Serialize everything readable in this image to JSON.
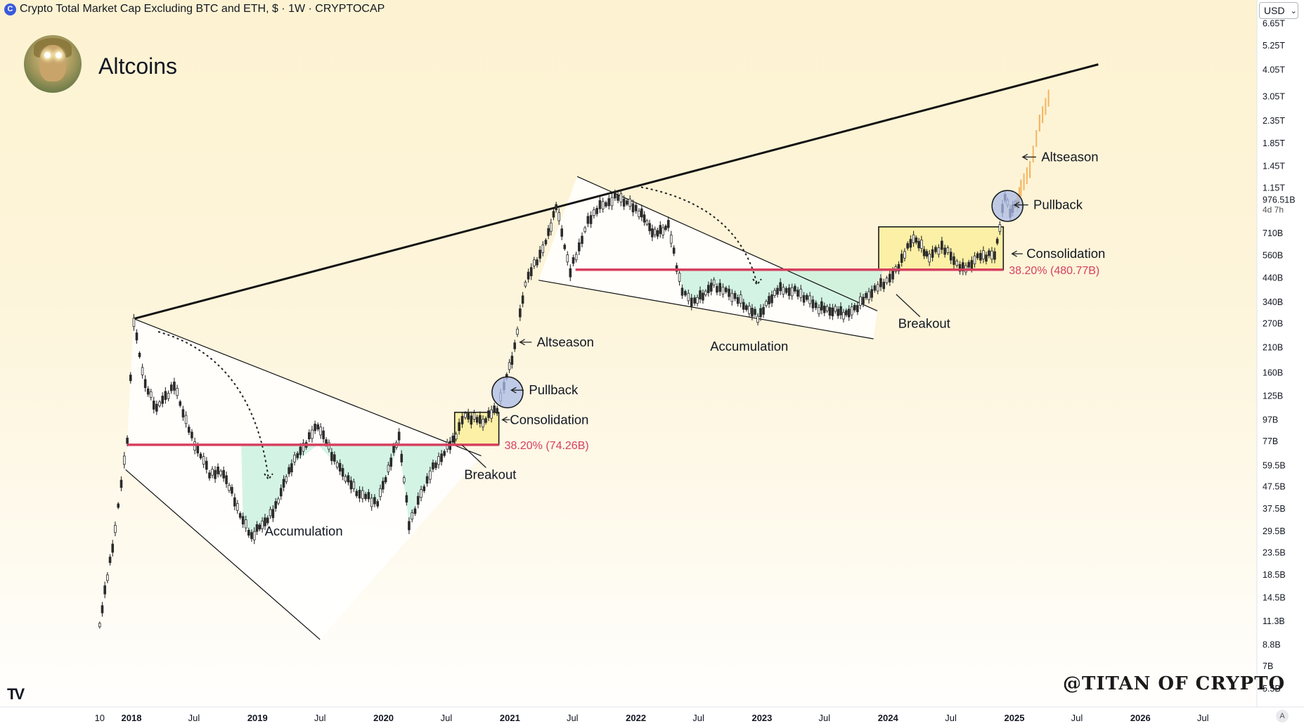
{
  "header": {
    "logo_icon": "cryptocap-logo-icon",
    "title": "Crypto Total Market Cap Excluding BTC and ETH, $ · 1W · CRYPTOCAP"
  },
  "page_title": "Altcoins",
  "currency_select": {
    "value": "USD"
  },
  "watermark": "@TITAN OF CRYPTO",
  "auto_scale_label": "A",
  "colors": {
    "support": "#d6405f",
    "accumulation": "#c8f1de",
    "consolidation": "#fbf0a6",
    "pullback_circle": "#a9bbe8",
    "projection": "#f5b562"
  },
  "chart_data": {
    "type": "line",
    "y_scale": "log",
    "x_ticks": [
      "10",
      "2018",
      "Jul",
      "2019",
      "Jul",
      "2020",
      "Jul",
      "2021",
      "Jul",
      "2022",
      "Jul",
      "2023",
      "Jul",
      "2024",
      "Jul",
      "2025",
      "Jul",
      "2026",
      "Jul"
    ],
    "y_ticks": [
      "6.65T",
      "5.25T",
      "4.05T",
      "3.05T",
      "2.35T",
      "1.85T",
      "1.45T",
      "1.15T",
      "710B",
      "560B",
      "440B",
      "340B",
      "270B",
      "210B",
      "160B",
      "125B",
      "97B",
      "77B",
      "59.5B",
      "47.5B",
      "37.5B",
      "29.5B",
      "23.5B",
      "18.5B",
      "14.5B",
      "11.3B",
      "8.8B",
      "7B",
      "5.5B"
    ],
    "last_price": {
      "value": "976.51B",
      "countdown": "4d 7h"
    },
    "series": [
      {
        "values_billion_usd": [
          {
            "x": "2017-10-01",
            "y": 11
          },
          {
            "x": "2017-11-15",
            "y": 30
          },
          {
            "x": "2017-12-20",
            "y": 80
          },
          {
            "x": "2018-01-08",
            "y": 275
          },
          {
            "x": "2018-02-10",
            "y": 140
          },
          {
            "x": "2018-03-15",
            "y": 110
          },
          {
            "x": "2018-05-05",
            "y": 140
          },
          {
            "x": "2018-06-25",
            "y": 80
          },
          {
            "x": "2018-08-15",
            "y": 55
          },
          {
            "x": "2018-09-25",
            "y": 55
          },
          {
            "x": "2018-11-20",
            "y": 33
          },
          {
            "x": "2018-12-15",
            "y": 28
          },
          {
            "x": "2019-02-15",
            "y": 36
          },
          {
            "x": "2019-04-10",
            "y": 60
          },
          {
            "x": "2019-06-25",
            "y": 92
          },
          {
            "x": "2019-08-20",
            "y": 60
          },
          {
            "x": "2019-10-15",
            "y": 45
          },
          {
            "x": "2019-12-15",
            "y": 40
          },
          {
            "x": "2020-02-15",
            "y": 82
          },
          {
            "x": "2020-03-15",
            "y": 32
          },
          {
            "x": "2020-05-15",
            "y": 55
          },
          {
            "x": "2020-07-20",
            "y": 78
          },
          {
            "x": "2020-08-25",
            "y": 102
          },
          {
            "x": "2020-10-15",
            "y": 95
          },
          {
            "x": "2020-11-25",
            "y": 110
          },
          {
            "x": "2020-12-15",
            "y": 138
          },
          {
            "x": "2021-01-15",
            "y": 210
          },
          {
            "x": "2021-02-15",
            "y": 420
          },
          {
            "x": "2021-04-15",
            "y": 640
          },
          {
            "x": "2021-05-15",
            "y": 950
          },
          {
            "x": "2021-06-25",
            "y": 470
          },
          {
            "x": "2021-08-15",
            "y": 800
          },
          {
            "x": "2021-09-10",
            "y": 920
          },
          {
            "x": "2021-11-10",
            "y": 1050
          },
          {
            "x": "2022-01-10",
            "y": 900
          },
          {
            "x": "2022-02-25",
            "y": 700
          },
          {
            "x": "2022-04-05",
            "y": 770
          },
          {
            "x": "2022-05-15",
            "y": 380
          },
          {
            "x": "2022-06-20",
            "y": 340
          },
          {
            "x": "2022-08-15",
            "y": 410
          },
          {
            "x": "2022-10-15",
            "y": 360
          },
          {
            "x": "2022-12-20",
            "y": 290
          },
          {
            "x": "2023-02-15",
            "y": 390
          },
          {
            "x": "2023-04-15",
            "y": 380
          },
          {
            "x": "2023-06-15",
            "y": 320
          },
          {
            "x": "2023-09-10",
            "y": 300
          },
          {
            "x": "2023-11-15",
            "y": 380
          },
          {
            "x": "2024-01-15",
            "y": 450
          },
          {
            "x": "2024-03-15",
            "y": 680
          },
          {
            "x": "2024-04-30",
            "y": 550
          },
          {
            "x": "2024-06-05",
            "y": 620
          },
          {
            "x": "2024-08-05",
            "y": 480
          },
          {
            "x": "2024-09-25",
            "y": 560
          },
          {
            "x": "2024-11-05",
            "y": 560
          },
          {
            "x": "2024-12-05",
            "y": 1050
          },
          {
            "x": "2024-12-20",
            "y": 900
          },
          {
            "x": "2025-01-10",
            "y": 980
          }
        ]
      }
    ],
    "projection_billion_usd": [
      {
        "x": "2025-01-20",
        "y": 1150
      },
      {
        "x": "2025-02-15",
        "y": 1400
      },
      {
        "x": "2025-03-15",
        "y": 2300
      },
      {
        "x": "2025-04-10",
        "y": 3000
      }
    ],
    "trendlines": [
      {
        "name": "long-term-resistance",
        "from": {
          "x": "2018-01-08",
          "y": 285
        },
        "to": {
          "x": "2025-09-01",
          "y": 4300
        }
      },
      {
        "name": "channel-2018-upper",
        "from": {
          "x": "2018-01-08",
          "y": 285
        },
        "to": {
          "x": "2020-10-10",
          "y": 66
        }
      },
      {
        "name": "channel-2018-lower",
        "from": {
          "x": "2017-12-15",
          "y": 57
        },
        "to": {
          "x": "2019-07-01",
          "y": 9.3
        }
      },
      {
        "name": "channel-2022-upper",
        "from": {
          "x": "2021-07-15",
          "y": 1300
        },
        "to": {
          "x": "2023-12-01",
          "y": 310
        }
      },
      {
        "name": "channel-2022-lower",
        "from": {
          "x": "2021-03-25",
          "y": 430
        },
        "to": {
          "x": "2023-11-20",
          "y": 230
        }
      }
    ],
    "levels": [
      {
        "label": "38.20% (74.26B)",
        "value": 74.26,
        "from": "2017-12-20",
        "to": "2020-11-30"
      },
      {
        "label": "38.20% (480.77B)",
        "value": 480.77,
        "from": "2021-07-10",
        "to": "2024-11-30"
      }
    ],
    "boxes": [
      {
        "kind": "consolidation",
        "from": "2020-07-25",
        "to": "2020-11-30",
        "low": 74.26,
        "high": 105
      },
      {
        "kind": "consolidation",
        "from": "2023-12-05",
        "to": "2024-11-30",
        "low": 480.77,
        "high": 760
      }
    ],
    "circles": [
      {
        "kind": "pullback",
        "x": "2020-12-25",
        "y": 130
      },
      {
        "kind": "pullback",
        "x": "2024-12-12",
        "y": 950
      }
    ],
    "annotations": [
      {
        "text": "Accumulation",
        "x": "2019-05-15",
        "y": 29.5,
        "align": "middle"
      },
      {
        "text": "Breakout",
        "x": "2020-11-05",
        "y": 54,
        "align": "middle"
      },
      {
        "text": "Consolidation",
        "x": "2021-01-01",
        "y": 97,
        "align": "start",
        "arrow_from": "2021-01-01",
        "arrow_to": "2020-12-10"
      },
      {
        "text": "Pullback",
        "x": "2021-02-25",
        "y": 133,
        "align": "start",
        "arrow_from": "2021-02-10",
        "arrow_to": "2021-01-05"
      },
      {
        "text": "Altseason",
        "x": "2021-03-20",
        "y": 222,
        "align": "start",
        "arrow_from": "2021-03-05",
        "arrow_to": "2021-01-30"
      },
      {
        "text": "Accumulation",
        "x": "2022-11-25",
        "y": 212,
        "align": "middle"
      },
      {
        "text": "Breakout",
        "x": "2024-04-15",
        "y": 270,
        "align": "middle"
      },
      {
        "text": "Consolidation",
        "x": "2025-02-05",
        "y": 570,
        "align": "start",
        "arrow_from": "2025-01-25",
        "arrow_to": "2024-12-25"
      },
      {
        "text": "Pullback",
        "x": "2025-02-25",
        "y": 960,
        "align": "start",
        "arrow_from": "2025-02-10",
        "arrow_to": "2025-01-01"
      },
      {
        "text": "Altseason",
        "x": "2025-03-20",
        "y": 1600,
        "align": "start",
        "arrow_from": "2025-03-05",
        "arrow_to": "2025-01-25"
      }
    ]
  }
}
